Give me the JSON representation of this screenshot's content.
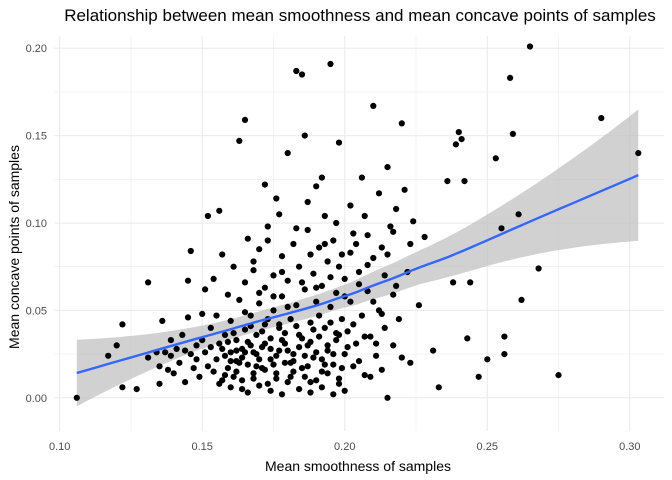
{
  "chart_data": {
    "type": "scatter",
    "title": "Relationship between mean smoothness and mean concave points of samples",
    "xlabel": "Mean smoothness of samples",
    "ylabel": "Mean concave points of samples",
    "xlim": [
      0.098,
      0.312
    ],
    "ylim": [
      -0.019,
      0.207
    ],
    "x_ticks": [
      0.1,
      0.15,
      0.2,
      0.25,
      0.3
    ],
    "x_tick_labels": [
      "0.10",
      "0.15",
      "0.20",
      "0.25",
      "0.30"
    ],
    "y_ticks": [
      0.0,
      0.05,
      0.1,
      0.15,
      0.2
    ],
    "y_tick_labels": [
      "0.00",
      "0.05",
      "0.10",
      "0.15",
      "0.20"
    ],
    "grid": true,
    "colors": {
      "points": "#000000",
      "smooth_line": "#3366ff",
      "confidence_band": "#bebebe",
      "grid": "#ebebeb"
    },
    "points": [
      [
        0.106,
        0.0
      ],
      [
        0.117,
        0.024
      ],
      [
        0.12,
        0.03
      ],
      [
        0.122,
        0.042
      ],
      [
        0.122,
        0.006
      ],
      [
        0.127,
        0.005
      ],
      [
        0.131,
        0.066
      ],
      [
        0.131,
        0.023
      ],
      [
        0.134,
        0.026
      ],
      [
        0.135,
        0.018
      ],
      [
        0.135,
        0.008
      ],
      [
        0.136,
        0.044
      ],
      [
        0.137,
        0.026
      ],
      [
        0.138,
        0.016
      ],
      [
        0.139,
        0.024
      ],
      [
        0.139,
        0.033
      ],
      [
        0.14,
        0.014
      ],
      [
        0.141,
        0.028
      ],
      [
        0.142,
        0.02
      ],
      [
        0.143,
        0.036
      ],
      [
        0.144,
        0.027
      ],
      [
        0.144,
        0.009
      ],
      [
        0.145,
        0.067
      ],
      [
        0.145,
        0.046
      ],
      [
        0.146,
        0.025
      ],
      [
        0.146,
        0.084
      ],
      [
        0.147,
        0.017
      ],
      [
        0.148,
        0.03
      ],
      [
        0.148,
        0.022
      ],
      [
        0.149,
        0.012
      ],
      [
        0.15,
        0.048
      ],
      [
        0.15,
        0.033
      ],
      [
        0.151,
        0.062
      ],
      [
        0.151,
        0.026
      ],
      [
        0.152,
        0.018
      ],
      [
        0.152,
        0.104
      ],
      [
        0.153,
        0.04
      ],
      [
        0.153,
        0.029
      ],
      [
        0.154,
        0.015
      ],
      [
        0.154,
        0.068
      ],
      [
        0.155,
        0.022
      ],
      [
        0.155,
        0.047
      ],
      [
        0.156,
        0.107
      ],
      [
        0.156,
        0.031
      ],
      [
        0.157,
        0.01
      ],
      [
        0.157,
        0.082
      ],
      [
        0.158,
        0.036
      ],
      [
        0.158,
        0.024
      ],
      [
        0.159,
        0.059
      ],
      [
        0.159,
        0.017
      ],
      [
        0.16,
        0.026
      ],
      [
        0.16,
        0.044
      ],
      [
        0.161,
        0.075
      ],
      [
        0.161,
        0.012
      ],
      [
        0.162,
        0.033
      ],
      [
        0.162,
        0.021
      ],
      [
        0.163,
        0.147
      ],
      [
        0.163,
        0.056
      ],
      [
        0.164,
        0.028
      ],
      [
        0.164,
        0.005
      ],
      [
        0.165,
        0.159
      ],
      [
        0.165,
        0.039
      ],
      [
        0.165,
        0.066
      ],
      [
        0.166,
        0.019
      ],
      [
        0.166,
        0.091
      ],
      [
        0.167,
        0.03
      ],
      [
        0.167,
        0.047
      ],
      [
        0.168,
        0.011
      ],
      [
        0.168,
        0.073
      ],
      [
        0.169,
        0.025
      ],
      [
        0.169,
        0.036
      ],
      [
        0.17,
        0.085
      ],
      [
        0.17,
        0.054
      ],
      [
        0.171,
        0.017
      ],
      [
        0.171,
        0.029
      ],
      [
        0.172,
        0.063
      ],
      [
        0.172,
        0.042
      ],
      [
        0.173,
        0.008
      ],
      [
        0.173,
        0.098
      ],
      [
        0.174,
        0.022
      ],
      [
        0.174,
        0.034
      ],
      [
        0.175,
        0.07
      ],
      [
        0.175,
        0.05
      ],
      [
        0.176,
        0.014
      ],
      [
        0.176,
        0.114
      ],
      [
        0.177,
        0.027
      ],
      [
        0.177,
        0.04
      ],
      [
        0.178,
        0.081
      ],
      [
        0.178,
        0.058
      ],
      [
        0.179,
        0.02
      ],
      [
        0.179,
        0.031
      ],
      [
        0.18,
        0.14
      ],
      [
        0.18,
        0.067
      ],
      [
        0.181,
        0.045
      ],
      [
        0.181,
        0.012
      ],
      [
        0.182,
        0.088
      ],
      [
        0.182,
        0.025
      ],
      [
        0.183,
        0.187
      ],
      [
        0.183,
        0.053
      ],
      [
        0.184,
        0.036
      ],
      [
        0.184,
        0.075
      ],
      [
        0.185,
        0.185
      ],
      [
        0.185,
        0.017
      ],
      [
        0.186,
        0.15
      ],
      [
        0.186,
        0.062
      ],
      [
        0.187,
        0.03
      ],
      [
        0.187,
        0.096
      ],
      [
        0.188,
        0.043
      ],
      [
        0.188,
        0.009
      ],
      [
        0.189,
        0.071
      ],
      [
        0.189,
        0.023
      ],
      [
        0.19,
        0.121
      ],
      [
        0.19,
        0.055
      ],
      [
        0.191,
        0.035
      ],
      [
        0.191,
        0.086
      ],
      [
        0.192,
        0.015
      ],
      [
        0.192,
        0.064
      ],
      [
        0.193,
        0.04
      ],
      [
        0.193,
        0.104
      ],
      [
        0.194,
        0.027
      ],
      [
        0.194,
        0.078
      ],
      [
        0.195,
        0.052
      ],
      [
        0.195,
        0.191
      ],
      [
        0.196,
        0.019
      ],
      [
        0.196,
        0.09
      ],
      [
        0.197,
        0.033
      ],
      [
        0.197,
        0.06
      ],
      [
        0.198,
        0.011
      ],
      [
        0.198,
        0.146
      ],
      [
        0.199,
        0.045
      ],
      [
        0.199,
        0.082
      ],
      [
        0.2,
        0.025
      ],
      [
        0.2,
        0.068
      ],
      [
        0.201,
        0.038
      ],
      [
        0.202,
        0.11
      ],
      [
        0.202,
        0.055
      ],
      [
        0.203,
        0.018
      ],
      [
        0.204,
        0.088
      ],
      [
        0.204,
        0.031
      ],
      [
        0.205,
        0.072
      ],
      [
        0.206,
        0.047
      ],
      [
        0.206,
        0.126
      ],
      [
        0.207,
        0.013
      ],
      [
        0.208,
        0.093
      ],
      [
        0.208,
        0.061
      ],
      [
        0.209,
        0.035
      ],
      [
        0.21,
        0.167
      ],
      [
        0.21,
        0.08
      ],
      [
        0.211,
        0.024
      ],
      [
        0.212,
        0.05
      ],
      [
        0.212,
        0.117
      ],
      [
        0.213,
        0.016
      ],
      [
        0.214,
        0.07
      ],
      [
        0.214,
        0.04
      ],
      [
        0.215,
        0.132
      ],
      [
        0.215,
        0.0
      ],
      [
        0.216,
        0.098
      ],
      [
        0.217,
        0.03
      ],
      [
        0.217,
        0.059
      ],
      [
        0.218,
        0.108
      ],
      [
        0.219,
        0.045
      ],
      [
        0.22,
        0.157
      ],
      [
        0.22,
        0.023
      ],
      [
        0.221,
        0.119
      ],
      [
        0.222,
        0.072
      ],
      [
        0.223,
        0.02
      ],
      [
        0.224,
        0.101
      ],
      [
        0.226,
        0.053
      ],
      [
        0.228,
        0.092
      ],
      [
        0.231,
        0.027
      ],
      [
        0.233,
        0.006
      ],
      [
        0.236,
        0.124
      ],
      [
        0.238,
        0.066
      ],
      [
        0.239,
        0.145
      ],
      [
        0.24,
        0.152
      ],
      [
        0.241,
        0.148
      ],
      [
        0.242,
        0.124
      ],
      [
        0.243,
        0.034
      ],
      [
        0.244,
        0.066
      ],
      [
        0.247,
        0.012
      ],
      [
        0.25,
        0.022
      ],
      [
        0.253,
        0.137
      ],
      [
        0.255,
        0.097
      ],
      [
        0.256,
        0.035
      ],
      [
        0.256,
        0.025
      ],
      [
        0.258,
        0.183
      ],
      [
        0.259,
        0.151
      ],
      [
        0.261,
        0.105
      ],
      [
        0.262,
        0.056
      ],
      [
        0.265,
        0.201
      ],
      [
        0.268,
        0.074
      ],
      [
        0.275,
        0.013
      ],
      [
        0.29,
        0.16
      ],
      [
        0.303,
        0.14
      ],
      [
        0.156,
        0.008
      ],
      [
        0.158,
        0.013
      ],
      [
        0.16,
        0.006
      ],
      [
        0.162,
        0.015
      ],
      [
        0.164,
        0.01
      ],
      [
        0.166,
        0.003
      ],
      [
        0.168,
        0.014
      ],
      [
        0.17,
        0.007
      ],
      [
        0.172,
        0.016
      ],
      [
        0.174,
        0.004
      ],
      [
        0.176,
        0.011
      ],
      [
        0.178,
        0.002
      ],
      [
        0.18,
        0.009
      ],
      [
        0.182,
        0.015
      ],
      [
        0.184,
        0.005
      ],
      [
        0.186,
        0.012
      ],
      [
        0.188,
        0.003
      ],
      [
        0.19,
        0.01
      ],
      [
        0.192,
        0.006
      ],
      [
        0.194,
        0.014
      ],
      [
        0.196,
        0.002
      ],
      [
        0.198,
        0.008
      ],
      [
        0.2,
        0.004
      ],
      [
        0.16,
        0.021
      ],
      [
        0.162,
        0.027
      ],
      [
        0.164,
        0.023
      ],
      [
        0.166,
        0.032
      ],
      [
        0.168,
        0.026
      ],
      [
        0.17,
        0.022
      ],
      [
        0.172,
        0.031
      ],
      [
        0.174,
        0.028
      ],
      [
        0.176,
        0.024
      ],
      [
        0.178,
        0.033
      ],
      [
        0.18,
        0.027
      ],
      [
        0.182,
        0.021
      ],
      [
        0.184,
        0.029
      ],
      [
        0.186,
        0.024
      ],
      [
        0.188,
        0.032
      ],
      [
        0.19,
        0.026
      ],
      [
        0.192,
        0.022
      ],
      [
        0.194,
        0.03
      ],
      [
        0.196,
        0.025
      ],
      [
        0.198,
        0.036
      ],
      [
        0.157,
        0.028
      ],
      [
        0.159,
        0.032
      ],
      [
        0.161,
        0.037
      ],
      [
        0.163,
        0.02
      ],
      [
        0.165,
        0.026
      ],
      [
        0.167,
        0.041
      ],
      [
        0.169,
        0.018
      ],
      [
        0.171,
        0.038
      ],
      [
        0.173,
        0.045
      ],
      [
        0.175,
        0.019
      ],
      [
        0.177,
        0.042
      ],
      [
        0.179,
        0.037
      ],
      [
        0.181,
        0.02
      ],
      [
        0.183,
        0.041
      ],
      [
        0.185,
        0.034
      ],
      [
        0.187,
        0.018
      ],
      [
        0.189,
        0.039
      ],
      [
        0.191,
        0.047
      ],
      [
        0.193,
        0.019
      ],
      [
        0.195,
        0.043
      ],
      [
        0.197,
        0.037
      ],
      [
        0.199,
        0.017
      ],
      [
        0.201,
        0.029
      ],
      [
        0.203,
        0.042
      ],
      [
        0.205,
        0.021
      ],
      [
        0.207,
        0.035
      ],
      [
        0.209,
        0.012
      ],
      [
        0.211,
        0.031
      ],
      [
        0.213,
        0.048
      ],
      [
        0.165,
        0.049
      ],
      [
        0.17,
        0.06
      ],
      [
        0.175,
        0.058
      ],
      [
        0.18,
        0.052
      ],
      [
        0.185,
        0.066
      ],
      [
        0.19,
        0.063
      ],
      [
        0.195,
        0.069
      ],
      [
        0.2,
        0.058
      ],
      [
        0.205,
        0.065
      ],
      [
        0.21,
        0.055
      ],
      [
        0.215,
        0.082
      ],
      [
        0.168,
        0.078
      ],
      [
        0.178,
        0.072
      ],
      [
        0.188,
        0.082
      ],
      [
        0.198,
        0.075
      ],
      [
        0.208,
        0.076
      ],
      [
        0.218,
        0.064
      ],
      [
        0.173,
        0.09
      ],
      [
        0.183,
        0.097
      ],
      [
        0.193,
        0.088
      ],
      [
        0.203,
        0.094
      ],
      [
        0.213,
        0.086
      ],
      [
        0.223,
        0.088
      ],
      [
        0.177,
        0.105
      ],
      [
        0.187,
        0.112
      ],
      [
        0.197,
        0.1
      ],
      [
        0.207,
        0.104
      ],
      [
        0.217,
        0.095
      ],
      [
        0.192,
        0.126
      ],
      [
        0.202,
        0.083
      ],
      [
        0.172,
        0.122
      ]
    ]
  }
}
